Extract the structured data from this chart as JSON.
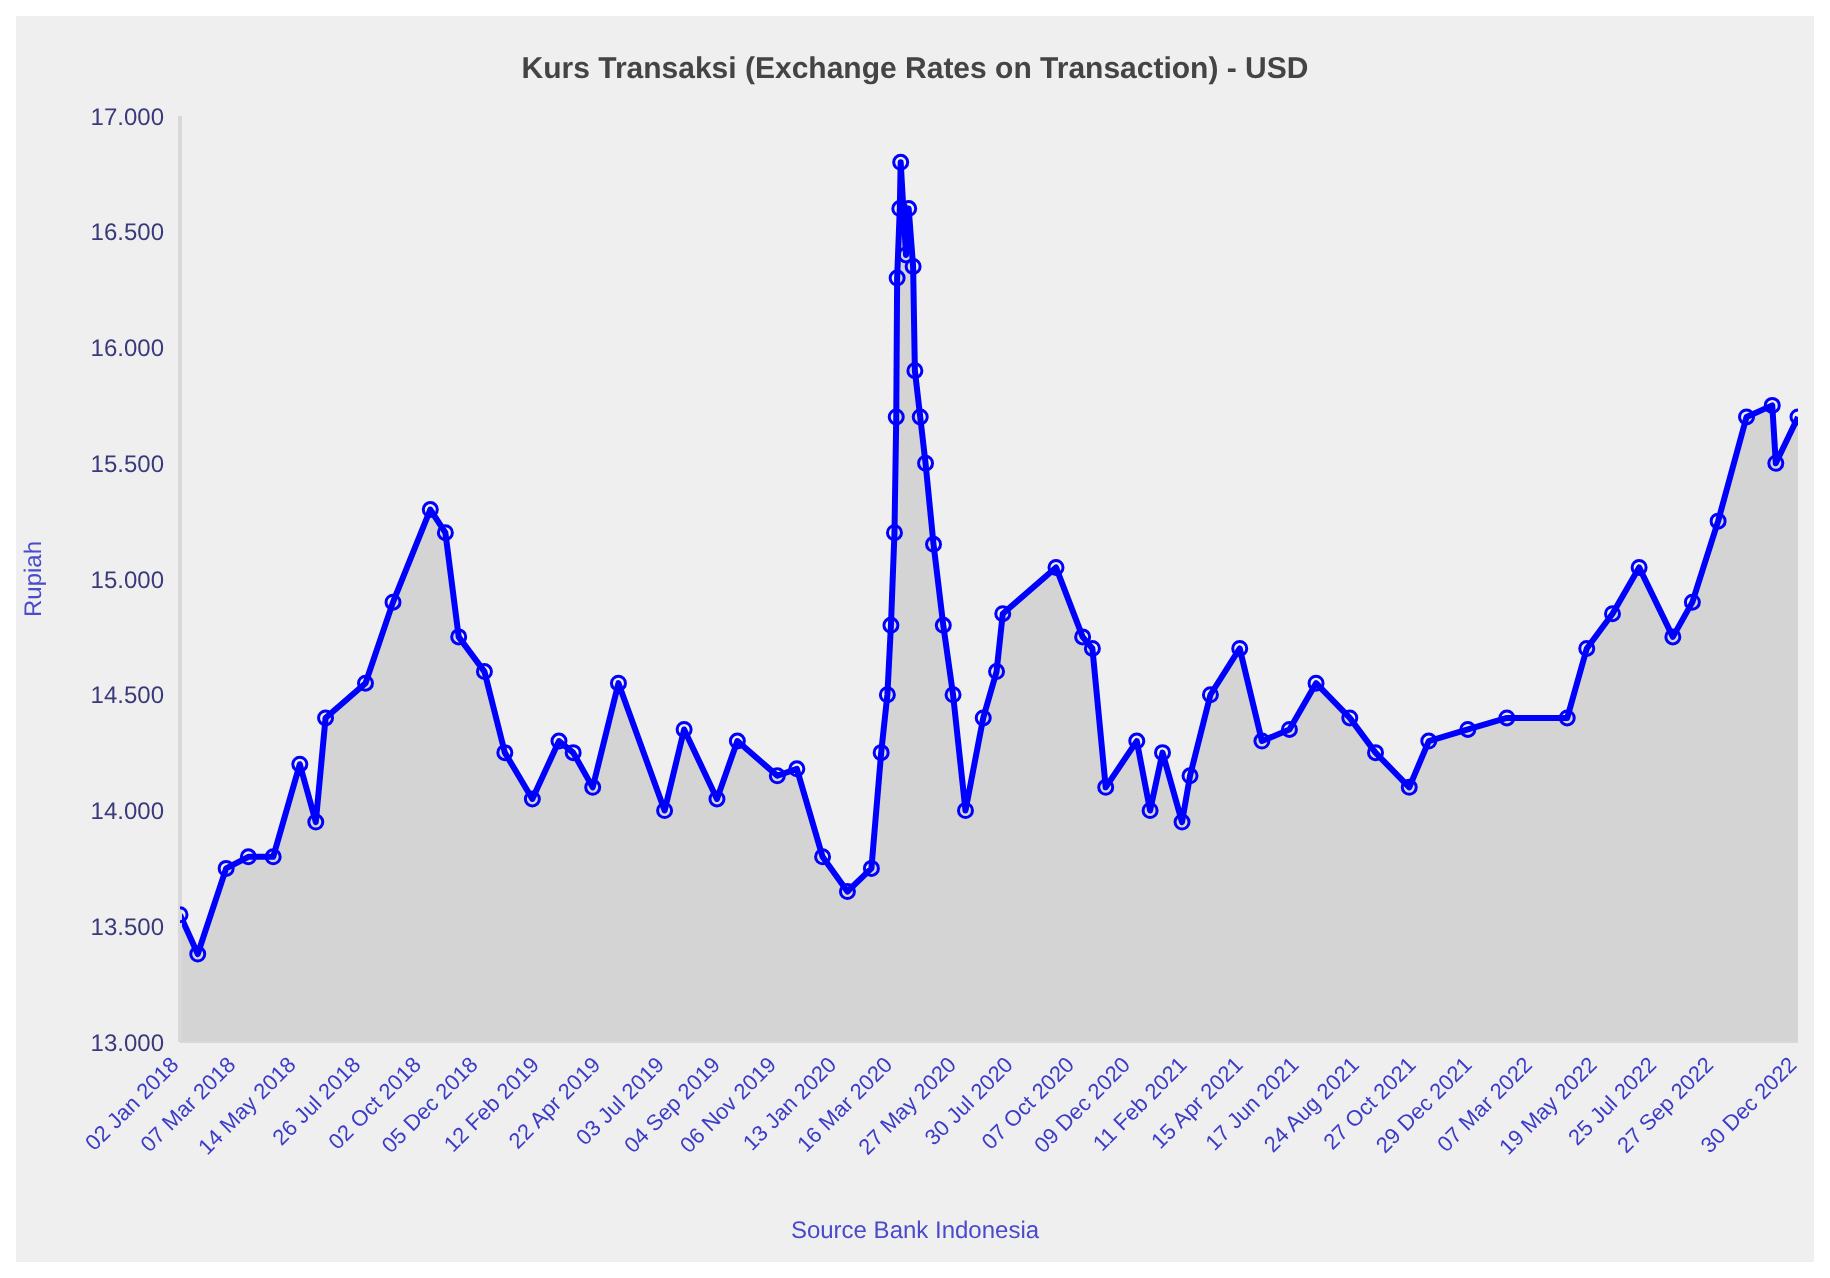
{
  "chart_data": {
    "type": "area",
    "title": "Kurs Transaksi (Exchange Rates on Transaction) - USD",
    "ylabel": "Rupiah",
    "annotations": [
      "Source Bank Indonesia"
    ],
    "marker": "circle",
    "line_style": "solid",
    "xlim": [
      "2018-01-02",
      "2022-12-30"
    ],
    "xticks": [
      {
        "value": "2018-01-02",
        "label": "02 Jan 2018"
      },
      {
        "value": "2018-03-07",
        "label": "07 Mar 2018"
      },
      {
        "value": "2018-05-14",
        "label": "14 May 2018"
      },
      {
        "value": "2018-07-26",
        "label": "26 Jul 2018"
      },
      {
        "value": "2018-10-02",
        "label": "02 Oct 2018"
      },
      {
        "value": "2018-12-05",
        "label": "05 Dec 2018"
      },
      {
        "value": "2019-02-12",
        "label": "12 Feb 2019"
      },
      {
        "value": "2019-04-22",
        "label": "22 Apr 2019"
      },
      {
        "value": "2019-07-03",
        "label": "03 Jul 2019"
      },
      {
        "value": "2019-09-04",
        "label": "04 Sep 2019"
      },
      {
        "value": "2019-11-06",
        "label": "06 Nov 2019"
      },
      {
        "value": "2020-01-13",
        "label": "13 Jan 2020"
      },
      {
        "value": "2020-03-16",
        "label": "16 Mar 2020"
      },
      {
        "value": "2020-05-27",
        "label": "27 May 2020"
      },
      {
        "value": "2020-07-30",
        "label": "30 Jul 2020"
      },
      {
        "value": "2020-10-07",
        "label": "07 Oct 2020"
      },
      {
        "value": "2020-12-09",
        "label": "09 Dec 2020"
      },
      {
        "value": "2021-02-11",
        "label": "11 Feb 2021"
      },
      {
        "value": "2021-04-15",
        "label": "15 Apr 2021"
      },
      {
        "value": "2021-06-17",
        "label": "17 Jun 2021"
      },
      {
        "value": "2021-08-24",
        "label": "24 Aug 2021"
      },
      {
        "value": "2021-10-27",
        "label": "27 Oct 2021"
      },
      {
        "value": "2021-12-29",
        "label": "29 Dec 2021"
      },
      {
        "value": "2022-03-07",
        "label": "07 Mar 2022"
      },
      {
        "value": "2022-05-19",
        "label": "19 May 2022"
      },
      {
        "value": "2022-07-25",
        "label": "25 Jul 2022"
      },
      {
        "value": "2022-09-27",
        "label": "27 Sep 2022"
      },
      {
        "value": "2022-12-30",
        "label": "30 Dec 2022"
      }
    ],
    "ylim": [
      13000,
      17000
    ],
    "yticks": [
      {
        "value": 13000,
        "label": "13.000"
      },
      {
        "value": 13500,
        "label": "13.500"
      },
      {
        "value": 14000,
        "label": "14.000"
      },
      {
        "value": 14500,
        "label": "14.500"
      },
      {
        "value": 15000,
        "label": "15.000"
      },
      {
        "value": 15500,
        "label": "15.500"
      },
      {
        "value": 16000,
        "label": "16.000"
      },
      {
        "value": 16500,
        "label": "16.500"
      },
      {
        "value": 17000,
        "label": "17.000"
      }
    ],
    "x": [
      "2018-01-02",
      "2018-01-22",
      "2018-02-23",
      "2018-03-20",
      "2018-04-17",
      "2018-05-17",
      "2018-06-04",
      "2018-06-15",
      "2018-07-30",
      "2018-08-30",
      "2018-10-11",
      "2018-10-28",
      "2018-11-12",
      "2018-12-11",
      "2019-01-03",
      "2019-02-03",
      "2019-03-05",
      "2019-03-21",
      "2019-04-12",
      "2019-05-11",
      "2019-07-02",
      "2019-07-24",
      "2019-08-30",
      "2019-09-22",
      "2019-11-06",
      "2019-11-28",
      "2019-12-27",
      "2020-01-24",
      "2020-02-20",
      "2020-03-02",
      "2020-03-09",
      "2020-03-13",
      "2020-03-17",
      "2020-03-19",
      "2020-03-20",
      "2020-03-23",
      "2020-03-24",
      "2020-03-30",
      "2020-04-02",
      "2020-04-07",
      "2020-04-09",
      "2020-04-15",
      "2020-04-21",
      "2020-04-30",
      "2020-05-11",
      "2020-05-22",
      "2020-06-05",
      "2020-06-25",
      "2020-07-10",
      "2020-07-17",
      "2020-09-15",
      "2020-10-15",
      "2020-10-26",
      "2020-11-10",
      "2020-12-15",
      "2020-12-30",
      "2021-01-13",
      "2021-02-04",
      "2021-02-13",
      "2021-03-08",
      "2021-04-10",
      "2021-05-05",
      "2021-06-05",
      "2021-07-05",
      "2021-08-12",
      "2021-09-10",
      "2021-10-18",
      "2021-11-09",
      "2021-12-23",
      "2022-02-05",
      "2022-04-14",
      "2022-05-06",
      "2022-06-04",
      "2022-07-04",
      "2022-08-11",
      "2022-09-02",
      "2022-10-01",
      "2022-11-02",
      "2022-12-01",
      "2022-12-05",
      "2022-12-30"
    ],
    "series": [
      {
        "color": "#0000ff",
        "values": [
          13550,
          13380,
          13750,
          13800,
          13800,
          14200,
          13950,
          14400,
          14550,
          14900,
          15300,
          15200,
          14750,
          14600,
          14250,
          14050,
          14300,
          14250,
          14100,
          14550,
          14000,
          14350,
          14050,
          14300,
          14150,
          14180,
          13800,
          13650,
          13750,
          14250,
          14500,
          14800,
          15200,
          15700,
          16300,
          16600,
          16800,
          16400,
          16600,
          16350,
          15900,
          15700,
          15500,
          15150,
          14800,
          14500,
          14000,
          14400,
          14600,
          14850,
          15050,
          14750,
          14700,
          14100,
          14300,
          14000,
          14250,
          13950,
          14150,
          14500,
          14700,
          14300,
          14350,
          14550,
          14400,
          14250,
          14100,
          14300,
          14350,
          14400,
          14400,
          14700,
          14850,
          15050,
          14750,
          14900,
          15250,
          15700,
          15750,
          15500,
          15700
        ]
      }
    ]
  }
}
